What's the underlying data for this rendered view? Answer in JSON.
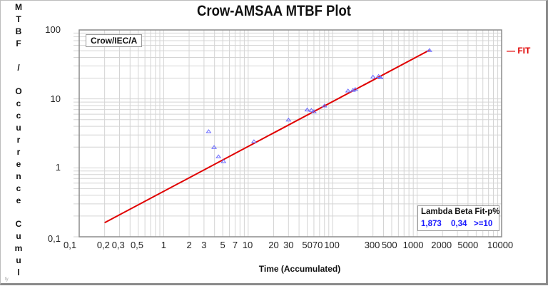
{
  "chart": {
    "title": "Crow-AMSAA MTBF Plot",
    "ylabel": "MTBF / Occurrence Cumul",
    "xlabel": "Time (Accumulated)",
    "tag": "Crow/IEC/A",
    "legend_label": "FIT",
    "corner_glyph": "fy",
    "stats": {
      "header": "Lambda Beta Fit-p%",
      "lambda": "1,873",
      "beta": "0,34",
      "fit_p": ">=10"
    },
    "x_ticks": [
      "0,1",
      "0,2",
      "0,3",
      "0,5",
      "1",
      "2",
      "3",
      "5",
      "7",
      "10",
      "20",
      "30",
      "50",
      "70",
      "100",
      "300",
      "500",
      "1000",
      "2000",
      "5000",
      "10000"
    ],
    "y_ticks": [
      "100",
      "10",
      "1",
      "0,1"
    ]
  },
  "chart_data": {
    "type": "scatter",
    "title": "Crow-AMSAA MTBF Plot",
    "xlabel": "Time (Accumulated)",
    "ylabel": "MTBF / Occurrence Cumul",
    "xscale": "log",
    "yscale": "log",
    "xlim": [
      0.1,
      10000
    ],
    "ylim": [
      0.1,
      100
    ],
    "grid": true,
    "legend": {
      "position": "right",
      "entries": [
        "FIT"
      ]
    },
    "annotations": [
      "Crow/IEC/A",
      "Lambda 1,873",
      "Beta 0,34",
      "Fit-p% >=10"
    ],
    "series": [
      {
        "name": "Data",
        "marker": "triangle",
        "color": "#6b6bff",
        "x": [
          3.4,
          3.95,
          4.45,
          5.1,
          11.7,
          30,
          50,
          56,
          60,
          80,
          152,
          174,
          185,
          300,
          350,
          370,
          1400
        ],
        "y": [
          3.4,
          2.0,
          1.47,
          1.25,
          2.43,
          5.0,
          7.0,
          6.9,
          6.6,
          8.0,
          13.2,
          13.5,
          13.9,
          21,
          21.5,
          20.5,
          51
        ]
      },
      {
        "name": "FIT",
        "type": "line",
        "color": "#e00000",
        "x": [
          0.2,
          1400
        ],
        "y": [
          0.16,
          51
        ]
      }
    ]
  }
}
